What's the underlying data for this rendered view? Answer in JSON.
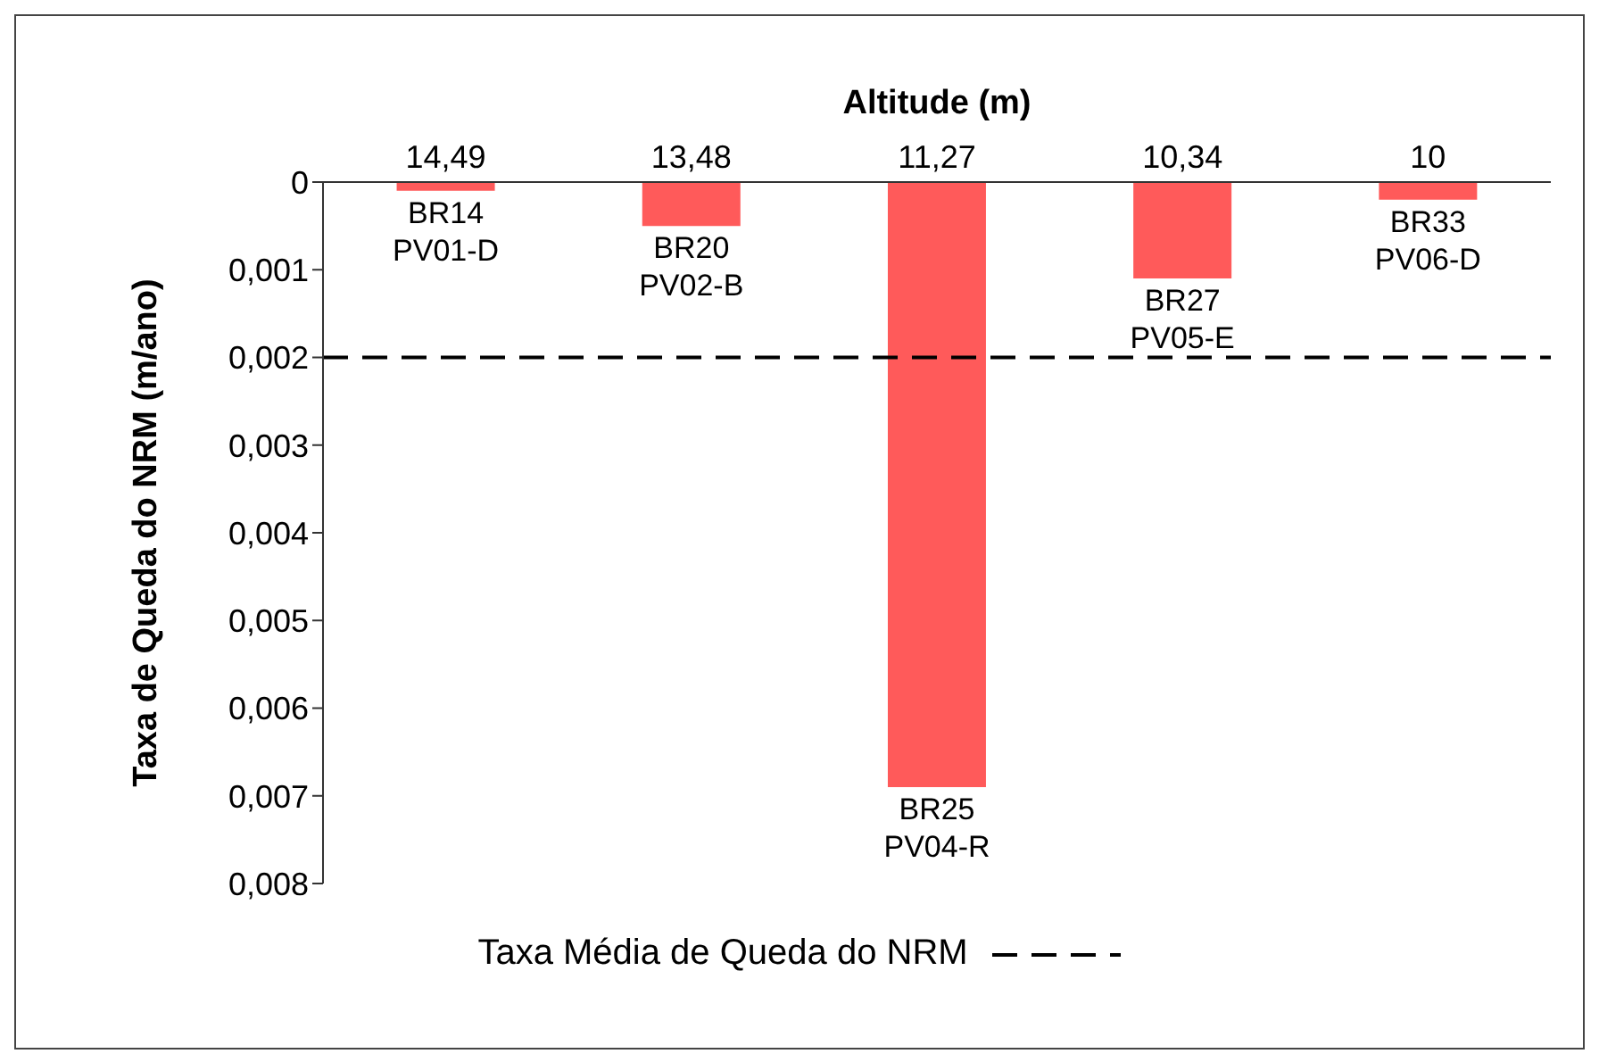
{
  "chart_data": {
    "type": "bar",
    "xlabel": "Altitude (m)",
    "ylabel": "Taxa de Queda do NRM (m/ano)",
    "categories": [
      "14,49",
      "13,48",
      "11,27",
      "10,34",
      "10"
    ],
    "values": [
      0.0001,
      0.0005,
      0.0069,
      0.0011,
      0.0002
    ],
    "color": "#ff5a5a",
    "ylim": [
      0.008,
      0
    ],
    "yticks": [
      0,
      {
        "value": 0.001,
        "label": "0,001"
      },
      {
        "value": 0.002,
        "label": "0,002"
      },
      {
        "value": 0.003,
        "label": "0,003"
      },
      {
        "value": 0.004,
        "label": "0,004"
      },
      {
        "value": 0.005,
        "label": "0,005"
      },
      {
        "value": 0.006,
        "label": "0,006"
      },
      {
        "value": 0.007,
        "label": "0,007"
      },
      {
        "value": 0.008,
        "label": "0,008"
      }
    ],
    "ref_lines": [
      {
        "axis": "y",
        "value": 0.002,
        "label": "Taxa Média de Queda do NRM",
        "color": "#000000",
        "line_style": "dashed"
      }
    ],
    "annotations": [
      {
        "text": "BR14\nPV01-D",
        "x": "14,49",
        "y": 0.0001
      },
      {
        "text": "BR20\nPV02-B",
        "x": "13,48",
        "y": 0.0005
      },
      {
        "text": "BR25\nPV04-R",
        "x": "11,27",
        "y": 0.0069
      },
      {
        "text": "BR27\nPV05-E",
        "x": "10,34",
        "y": 0.0011
      },
      {
        "text": "BR33\nPV06-D",
        "x": "10",
        "y": 0.0002
      }
    ],
    "legend": "bottom",
    "grid": false
  }
}
